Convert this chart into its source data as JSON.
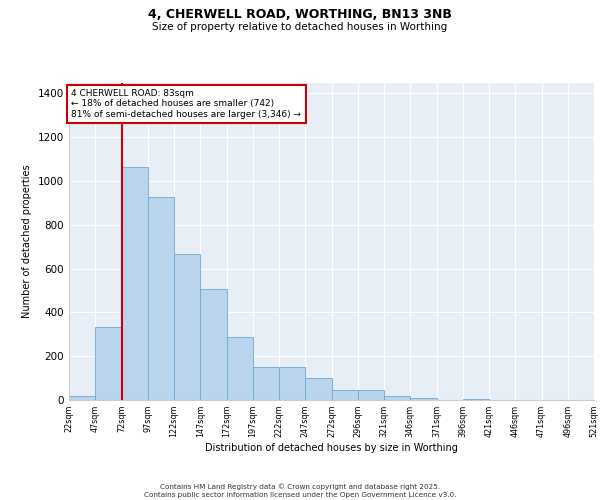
{
  "title_line1": "4, CHERWELL ROAD, WORTHING, BN13 3NB",
  "title_line2": "Size of property relative to detached houses in Worthing",
  "xlabel": "Distribution of detached houses by size in Worthing",
  "ylabel": "Number of detached properties",
  "bar_values": [
    20,
    335,
    1065,
    925,
    665,
    505,
    290,
    150,
    150,
    100,
    45,
    45,
    20,
    10,
    0,
    5,
    0,
    0,
    0,
    0
  ],
  "x_labels": [
    "22sqm",
    "47sqm",
    "72sqm",
    "97sqm",
    "122sqm",
    "147sqm",
    "172sqm",
    "197sqm",
    "222sqm",
    "247sqm",
    "272sqm",
    "296sqm",
    "321sqm",
    "346sqm",
    "371sqm",
    "396sqm",
    "421sqm",
    "446sqm",
    "471sqm",
    "496sqm",
    "521sqm"
  ],
  "bar_color": "#bad4ed",
  "bar_edge_color": "#6aaad4",
  "background_color": "#e8eef6",
  "grid_color": "#ffffff",
  "annotation_text": "4 CHERWELL ROAD: 83sqm\n← 18% of detached houses are smaller (742)\n81% of semi-detached houses are larger (3,346) →",
  "annotation_box_color": "#ffffff",
  "annotation_box_edge": "#cc0000",
  "red_line_color": "#cc0000",
  "ylim": [
    0,
    1450
  ],
  "yticks": [
    0,
    200,
    400,
    600,
    800,
    1000,
    1200,
    1400
  ],
  "footer_line1": "Contains HM Land Registry data © Crown copyright and database right 2025.",
  "footer_line2": "Contains public sector information licensed under the Open Government Licence v3.0."
}
